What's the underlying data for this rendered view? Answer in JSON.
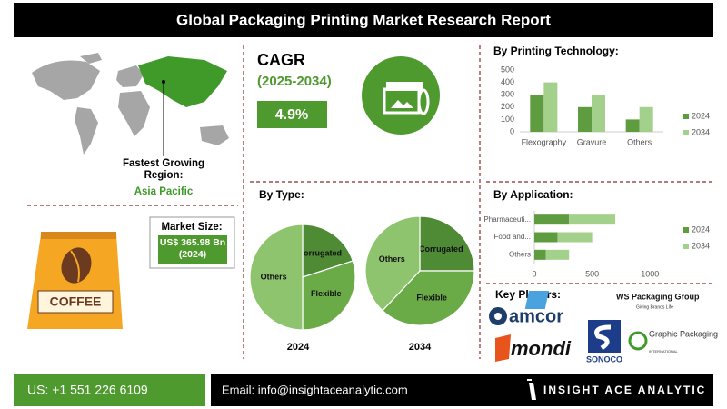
{
  "title": "Global Packaging Printing Market Research Report",
  "region": {
    "label": "Fastest Growing Region:",
    "value": "Asia Pacific"
  },
  "market_size": {
    "label": "Market Size:",
    "value": "US$ 365.98 Bn (2024)"
  },
  "coffee_label": "COFFEE",
  "cagr": {
    "label": "CAGR",
    "period": "(2025-2034)",
    "value": "4.9%"
  },
  "key_players": {
    "label": "Key Players:",
    "logos": [
      "amcor",
      "mondi",
      "WS Packaging Group",
      "Giving Brands Life",
      "SONOCO",
      "Graphic Packaging",
      "INTERNATIONAL"
    ]
  },
  "footer": {
    "phone": "US: +1 551 226 6109",
    "email": "Email: info@insightaceanalytic.com",
    "brand": "INSIGHT ACE ANALYTIC"
  },
  "chart_data": [
    {
      "type": "bar",
      "title": "By Printing Technology:",
      "categories": [
        "Flexography",
        "Gravure",
        "Others"
      ],
      "series": [
        {
          "name": "2024",
          "color": "#5e9c3f",
          "values": [
            300,
            200,
            100
          ]
        },
        {
          "name": "2034",
          "color": "#a3d18b",
          "values": [
            400,
            300,
            200
          ]
        }
      ],
      "ylim": [
        0,
        500
      ],
      "yticks": [
        0,
        100,
        200,
        300,
        400,
        500
      ],
      "grid": false,
      "legend": "right"
    },
    {
      "type": "barh",
      "title": "By Application:",
      "stacked": true,
      "categories": [
        "Pharmaceuti...",
        "Food and...",
        "Others"
      ],
      "series": [
        {
          "name": "2024",
          "color": "#5e9c3f",
          "values": [
            300,
            200,
            100
          ]
        },
        {
          "name": "2034",
          "color": "#a3d18b",
          "values": [
            400,
            300,
            200
          ]
        }
      ],
      "xlim": [
        0,
        1100
      ],
      "xticks": [
        0,
        500,
        1000
      ],
      "grid": false,
      "legend": "right"
    },
    {
      "type": "pie",
      "title": "By Type:",
      "label": "2024",
      "categories": [
        "Corrugated",
        "Flexible",
        "Others"
      ],
      "values": [
        20,
        30,
        50
      ],
      "colors": [
        "#4f8a35",
        "#6aab48",
        "#8fc46e"
      ]
    },
    {
      "type": "pie",
      "label": "2034",
      "categories": [
        "Corrugated",
        "Flexible",
        "Others"
      ],
      "values": [
        25,
        37,
        38
      ],
      "colors": [
        "#4f8a35",
        "#6aab48",
        "#8fc46e"
      ]
    }
  ]
}
